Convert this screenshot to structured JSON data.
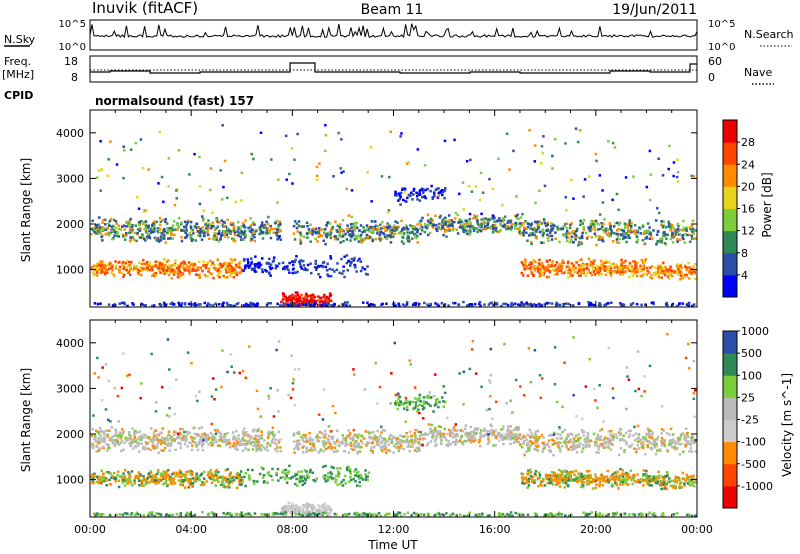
{
  "header": {
    "station": "Inuvik (fitACF)",
    "beam": "Beam 11",
    "date": "19/Jun/2011"
  },
  "nsky_panel": {
    "left_label": "N.Sky",
    "left_ticks": [
      "10^5",
      "10^0"
    ],
    "right_label": "N.Search",
    "right_ticks": [
      "10^5",
      "10^0"
    ]
  },
  "freq_panel": {
    "left_label_1": "Freq.",
    "left_label_2": "[MHz]",
    "left_ticks": [
      "18",
      "8"
    ],
    "right_label": "Nave",
    "right_ticks": [
      "60",
      "0"
    ]
  },
  "cpid": {
    "label": "CPID",
    "mode": "normalsound (fast) 157"
  },
  "colors": {
    "power": [
      "#0000ff",
      "#2b4fa8",
      "#2e8b57",
      "#7ccd3c",
      "#e8d21a",
      "#ff8c00",
      "#ff4500",
      "#ee0000"
    ],
    "velocity": [
      "#ee0000",
      "#ff4500",
      "#ff8c00",
      "#cccccc",
      "#bbbbbb",
      "#7ccd3c",
      "#2e8b57",
      "#2b4fa8"
    ]
  },
  "chart_data": [
    {
      "type": "heatmap",
      "name": "power-panel",
      "xlabel": "",
      "ylabel": "Slant Range [km]",
      "yticks": [
        "1000",
        "2000",
        "3000",
        "4000"
      ],
      "ylim": [
        180,
        4500
      ],
      "colorbar_label": "Power [dB]",
      "colorbar_ticks": [
        "4",
        "8",
        "12",
        "16",
        "20",
        "24",
        "28"
      ]
    },
    {
      "type": "heatmap",
      "name": "velocity-panel",
      "xlabel": "Time UT",
      "xticks": [
        "00:00",
        "04:00",
        "08:00",
        "12:00",
        "16:00",
        "20:00",
        "00:00"
      ],
      "ylabel": "Slant Range [km]",
      "yticks": [
        "1000",
        "2000",
        "3000",
        "4000"
      ],
      "ylim": [
        180,
        4500
      ],
      "colorbar_label": "Velocity [m s^-1]",
      "colorbar_ticks": [
        "1000",
        "500",
        "100",
        "25",
        "-25",
        "-100",
        "-500",
        "-1000"
      ]
    }
  ]
}
